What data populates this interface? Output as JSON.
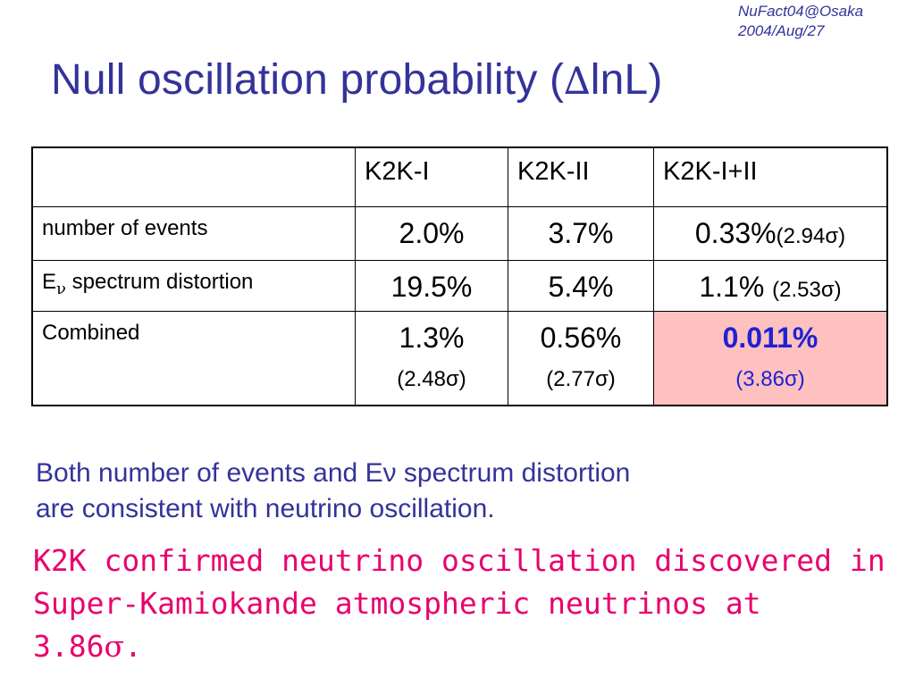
{
  "header": {
    "conference": "NuFact04@Osaka",
    "date": "2004/Aug/27"
  },
  "title": {
    "prefix": "Null oscillation probability (",
    "delta": "∆",
    "rest": "lnL)"
  },
  "table": {
    "corner": "",
    "columns": [
      "K2K-I",
      "K2K-II",
      "K2K-I+II"
    ],
    "rows": [
      {
        "label": "number of events",
        "cells": [
          {
            "value": "2.0%",
            "sigma": ""
          },
          {
            "value": "3.7%",
            "sigma": ""
          },
          {
            "value": "0.33%",
            "sigma": "(2.94σ)"
          }
        ]
      },
      {
        "label_main": "E",
        "label_sub": "ν",
        "label_rest": " spectrum distortion",
        "cells": [
          {
            "value": "19.5%",
            "sigma": ""
          },
          {
            "value": "5.4%",
            "sigma": ""
          },
          {
            "value": "1.1%",
            "sigma": "(2.53σ)"
          }
        ]
      },
      {
        "label": "Combined",
        "cells": [
          {
            "value": "1.3%",
            "sigma": "(2.48σ)"
          },
          {
            "value": "0.56%",
            "sigma": "(2.77σ)"
          },
          {
            "value": "0.011%",
            "sigma": "(3.86σ)",
            "highlight_bg": "#ffc0c0",
            "highlight_text": "#1e22d2"
          }
        ]
      }
    ]
  },
  "note": {
    "line1": "Both number of events and Eν spectrum distortion",
    "line2": "are consistent with neutrino oscillation."
  },
  "conclusion": {
    "line1": "K2K confirmed neutrino oscillation discovered in",
    "line2": "Super-Kamiokande atmospheric neutrinos at",
    "line3_value": "3.86",
    "line3_symbol": "σ",
    "line3_end": "."
  },
  "colors": {
    "title": "#33339a",
    "conclusion": "#e8006e",
    "highlight": "#ffc0c0"
  }
}
